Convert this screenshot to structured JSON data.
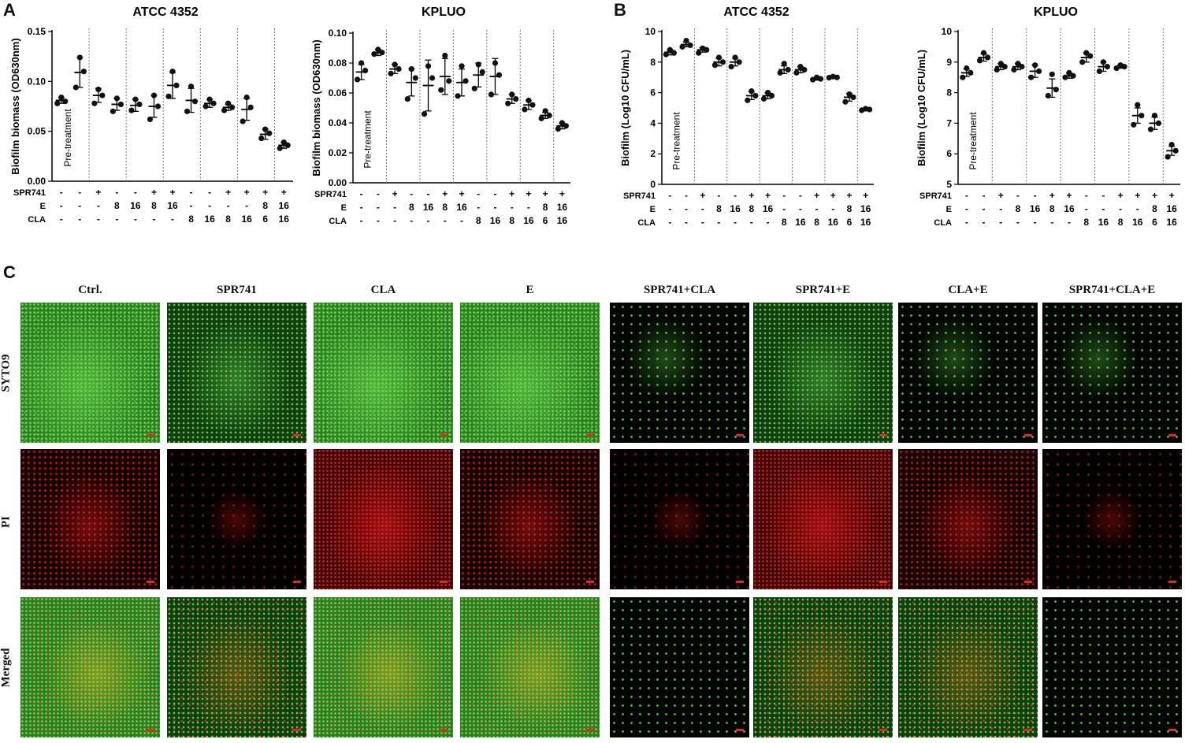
{
  "panels": {
    "a": "A",
    "b": "B",
    "c": "C"
  },
  "colors": {
    "syto9_green": "#4fcf3a",
    "pi_red": "#e02020",
    "scale_bar": "#e02a2a",
    "points": "#111111"
  },
  "chart_data": [
    {
      "type": "scatter",
      "title": "ATCC 4352",
      "ylabel": "Biofilm biomass (OD630nm)",
      "ylim": [
        0,
        0.15
      ],
      "yticks": [
        "0.00",
        "0.05",
        "0.10",
        "0.15"
      ],
      "annotation": "Pre-treatment",
      "treatment_rows": [
        {
          "label": "SPR741",
          "values": [
            "-",
            "-",
            "+",
            "-",
            "-",
            "+",
            "+",
            "-",
            "-",
            "+",
            "+",
            "+",
            "+"
          ]
        },
        {
          "label": "E",
          "values": [
            "-",
            "-",
            "-",
            "8",
            "16",
            "8",
            "16",
            "-",
            "-",
            "-",
            "-",
            "8",
            "16"
          ]
        },
        {
          "label": "CLA",
          "values": [
            "-",
            "-",
            "-",
            "-",
            "-",
            "-",
            "-",
            "8",
            "16",
            "8",
            "16",
            "6",
            "16"
          ]
        }
      ],
      "separators_after_group": [
        1,
        3,
        5,
        7,
        9,
        11
      ],
      "groups": [
        {
          "mean": 0.081,
          "sd": 0.003,
          "points": [
            0.084,
            0.08,
            0.078
          ]
        },
        {
          "mean": 0.109,
          "sd": 0.015,
          "points": [
            0.124,
            0.11,
            0.094
          ]
        },
        {
          "mean": 0.086,
          "sd": 0.007,
          "points": [
            0.092,
            0.086,
            0.078
          ]
        },
        {
          "mean": 0.077,
          "sd": 0.006,
          "points": [
            0.083,
            0.077,
            0.07
          ]
        },
        {
          "mean": 0.076,
          "sd": 0.006,
          "points": [
            0.082,
            0.077,
            0.071
          ]
        },
        {
          "mean": 0.075,
          "sd": 0.011,
          "points": [
            0.086,
            0.075,
            0.062
          ]
        },
        {
          "mean": 0.096,
          "sd": 0.013,
          "points": [
            0.11,
            0.096,
            0.085
          ]
        },
        {
          "mean": 0.081,
          "sd": 0.012,
          "points": [
            0.095,
            0.08,
            0.07
          ]
        },
        {
          "mean": 0.078,
          "sd": 0.004,
          "points": [
            0.082,
            0.078,
            0.075
          ]
        },
        {
          "mean": 0.074,
          "sd": 0.003,
          "points": [
            0.078,
            0.074,
            0.071
          ]
        },
        {
          "mean": 0.072,
          "sd": 0.011,
          "points": [
            0.084,
            0.074,
            0.06
          ]
        },
        {
          "mean": 0.047,
          "sd": 0.005,
          "points": [
            0.052,
            0.048,
            0.043
          ]
        },
        {
          "mean": 0.036,
          "sd": 0.003,
          "points": [
            0.039,
            0.036,
            0.033
          ]
        }
      ]
    },
    {
      "type": "scatter",
      "title": "KPLUO",
      "ylabel": "Biofilm biomass (OD630nm)",
      "ylim": [
        0,
        0.1
      ],
      "yticks": [
        "0.00",
        "0.02",
        "0.04",
        "0.06",
        "0.08",
        "0.10"
      ],
      "annotation": "Pre-treatment",
      "treatment_rows": [
        {
          "label": "SPR741",
          "values": [
            "-",
            "-",
            "+",
            "-",
            "-",
            "+",
            "+",
            "-",
            "-",
            "+",
            "+",
            "+",
            "+"
          ]
        },
        {
          "label": "E",
          "values": [
            "-",
            "-",
            "-",
            "8",
            "16",
            "8",
            "16",
            "-",
            "-",
            "-",
            "-",
            "8",
            "16"
          ]
        },
        {
          "label": "CLA",
          "values": [
            "-",
            "-",
            "-",
            "-",
            "-",
            "-",
            "-",
            "8",
            "16",
            "8",
            "16",
            "6",
            "16"
          ]
        }
      ],
      "separators_after_group": [
        1,
        3,
        5,
        7,
        9,
        11
      ],
      "groups": [
        {
          "mean": 0.074,
          "sd": 0.005,
          "points": [
            0.08,
            0.075,
            0.069
          ]
        },
        {
          "mean": 0.087,
          "sd": 0.002,
          "points": [
            0.089,
            0.087,
            0.086
          ]
        },
        {
          "mean": 0.076,
          "sd": 0.003,
          "points": [
            0.079,
            0.076,
            0.073
          ]
        },
        {
          "mean": 0.067,
          "sd": 0.009,
          "points": [
            0.076,
            0.07,
            0.056
          ]
        },
        {
          "mean": 0.065,
          "sd": 0.017,
          "points": [
            0.078,
            0.07,
            0.046
          ]
        },
        {
          "mean": 0.071,
          "sd": 0.012,
          "points": [
            0.085,
            0.068,
            0.062
          ]
        },
        {
          "mean": 0.067,
          "sd": 0.009,
          "points": [
            0.078,
            0.068,
            0.058
          ]
        },
        {
          "mean": 0.072,
          "sd": 0.008,
          "points": [
            0.079,
            0.074,
            0.063
          ]
        },
        {
          "mean": 0.071,
          "sd": 0.012,
          "points": [
            0.08,
            0.072,
            0.059
          ]
        },
        {
          "mean": 0.056,
          "sd": 0.003,
          "points": [
            0.059,
            0.056,
            0.053
          ]
        },
        {
          "mean": 0.052,
          "sd": 0.003,
          "points": [
            0.055,
            0.052,
            0.049
          ]
        },
        {
          "mean": 0.045,
          "sd": 0.002,
          "points": [
            0.048,
            0.045,
            0.043
          ]
        },
        {
          "mean": 0.038,
          "sd": 0.002,
          "points": [
            0.04,
            0.038,
            0.036
          ]
        }
      ]
    },
    {
      "type": "scatter",
      "title": "ATCC 4352",
      "ylabel": "Biofilm (Log10 CFU/mL)",
      "ylim": [
        0,
        10
      ],
      "yticks": [
        "0",
        "2",
        "4",
        "6",
        "8",
        "10"
      ],
      "annotation": "Pre-treatment",
      "treatment_rows": [
        {
          "label": "SPR741",
          "values": [
            "-",
            "-",
            "+",
            "-",
            "-",
            "+",
            "+",
            "-",
            "-",
            "+",
            "+",
            "+",
            "+"
          ]
        },
        {
          "label": "E",
          "values": [
            "-",
            "-",
            "-",
            "8",
            "16",
            "8",
            "16",
            "-",
            "-",
            "-",
            "-",
            "8",
            "16"
          ]
        },
        {
          "label": "CLA",
          "values": [
            "-",
            "-",
            "-",
            "-",
            "-",
            "-",
            "-",
            "8",
            "16",
            "8",
            "16",
            "6",
            "16"
          ]
        }
      ],
      "separators_after_group": [
        1,
        3,
        5,
        7,
        9,
        11
      ],
      "groups": [
        {
          "mean": 8.65,
          "sd": 0.18,
          "points": [
            8.8,
            8.6,
            8.5
          ]
        },
        {
          "mean": 9.15,
          "sd": 0.15,
          "points": [
            9.4,
            9.1,
            9.0
          ]
        },
        {
          "mean": 8.8,
          "sd": 0.15,
          "points": [
            8.9,
            8.8,
            8.6
          ]
        },
        {
          "mean": 8.0,
          "sd": 0.25,
          "points": [
            8.3,
            8.0,
            7.8
          ]
        },
        {
          "mean": 8.0,
          "sd": 0.25,
          "points": [
            8.3,
            8.0,
            7.7
          ]
        },
        {
          "mean": 5.8,
          "sd": 0.25,
          "points": [
            6.1,
            5.8,
            5.5
          ]
        },
        {
          "mean": 5.8,
          "sd": 0.2,
          "points": [
            6.0,
            5.8,
            5.6
          ]
        },
        {
          "mean": 7.5,
          "sd": 0.25,
          "points": [
            7.9,
            7.5,
            7.3
          ]
        },
        {
          "mean": 7.5,
          "sd": 0.2,
          "points": [
            7.7,
            7.5,
            7.3
          ]
        },
        {
          "mean": 6.9,
          "sd": 0.08,
          "points": [
            7.0,
            6.9,
            6.85
          ]
        },
        {
          "mean": 7.0,
          "sd": 0.05,
          "points": [
            7.05,
            7.0,
            6.98
          ]
        },
        {
          "mean": 5.7,
          "sd": 0.25,
          "points": [
            5.9,
            5.7,
            5.4
          ]
        },
        {
          "mean": 4.9,
          "sd": 0.08,
          "points": [
            4.95,
            4.9,
            4.85
          ]
        }
      ]
    },
    {
      "type": "scatter",
      "title": "KPLUO",
      "ylabel": "Biofilm (Log10 CFU/mL)",
      "ylim": [
        5,
        10
      ],
      "yticks": [
        "5",
        "6",
        "7",
        "8",
        "9",
        "10"
      ],
      "annotation": "Pre-treatment",
      "treatment_rows": [
        {
          "label": "SPR741",
          "values": [
            "-",
            "-",
            "+",
            "-",
            "-",
            "+",
            "+",
            "-",
            "-",
            "+",
            "+",
            "+",
            "+"
          ]
        },
        {
          "label": "E",
          "values": [
            "-",
            "-",
            "-",
            "8",
            "16",
            "8",
            "16",
            "-",
            "-",
            "-",
            "-",
            "8",
            "16"
          ]
        },
        {
          "label": "CLA",
          "values": [
            "-",
            "-",
            "-",
            "-",
            "-",
            "-",
            "-",
            "8",
            "16",
            "8",
            "16",
            "6",
            "16"
          ]
        }
      ],
      "separators_after_group": [
        1,
        3,
        5,
        7,
        9,
        11
      ],
      "groups": [
        {
          "mean": 8.65,
          "sd": 0.12,
          "points": [
            8.8,
            8.65,
            8.5
          ]
        },
        {
          "mean": 9.15,
          "sd": 0.12,
          "points": [
            9.3,
            9.15,
            9.05
          ]
        },
        {
          "mean": 8.85,
          "sd": 0.1,
          "points": [
            8.95,
            8.85,
            8.75
          ]
        },
        {
          "mean": 8.85,
          "sd": 0.1,
          "points": [
            8.95,
            8.85,
            8.75
          ]
        },
        {
          "mean": 8.7,
          "sd": 0.2,
          "points": [
            8.9,
            8.7,
            8.5
          ]
        },
        {
          "mean": 8.15,
          "sd": 0.3,
          "points": [
            8.6,
            8.1,
            7.9
          ]
        },
        {
          "mean": 8.55,
          "sd": 0.08,
          "points": [
            8.65,
            8.55,
            8.5
          ]
        },
        {
          "mean": 9.15,
          "sd": 0.15,
          "points": [
            9.3,
            9.2,
            9.0
          ]
        },
        {
          "mean": 8.85,
          "sd": 0.15,
          "points": [
            9.0,
            8.85,
            8.7
          ]
        },
        {
          "mean": 8.85,
          "sd": 0.05,
          "points": [
            8.9,
            8.85,
            8.8
          ]
        },
        {
          "mean": 7.25,
          "sd": 0.25,
          "points": [
            7.6,
            7.25,
            6.95
          ]
        },
        {
          "mean": 7.0,
          "sd": 0.2,
          "points": [
            7.25,
            7.0,
            6.8
          ]
        },
        {
          "mean": 6.1,
          "sd": 0.15,
          "points": [
            6.3,
            6.1,
            5.9
          ]
        }
      ]
    }
  ],
  "microscopy": {
    "columns": [
      "Ctrl.",
      "SPR741",
      "CLA",
      "E",
      "SPR741+CLA",
      "SPR741+E",
      "CLA+E",
      "SPR741+CLA+E"
    ],
    "rows": [
      "SYTO9",
      "PI",
      "Merged"
    ]
  }
}
